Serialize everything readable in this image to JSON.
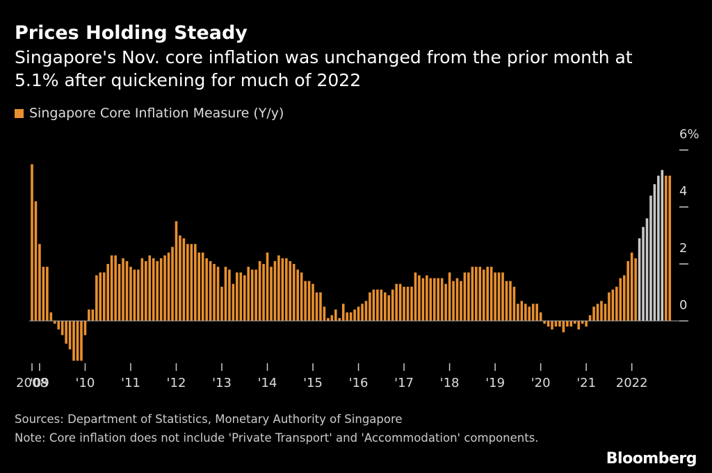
{
  "chart_data": {
    "type": "bar",
    "title": "Prices Holding Steady",
    "subtitle": "Singapore's Nov. core inflation was unchanged from the prior month at 5.1% after quickening for much of 2022",
    "source": "Sources: Department of Statistics, Monetary Authority of Singapore",
    "note": "Note: Core inflation does not include 'Private Transport' and 'Accommodation' components.",
    "brand": "Bloomberg",
    "ylim": [
      -1.6,
      6
    ],
    "yticks": [
      0,
      2,
      4,
      {
        "value": 6,
        "label": "6%"
      }
    ],
    "categories": [
      "2008",
      null,
      "'09",
      null,
      null,
      null,
      null,
      null,
      null,
      null,
      null,
      null,
      null,
      null,
      "'10",
      null,
      null,
      null,
      null,
      null,
      null,
      null,
      null,
      null,
      null,
      null,
      "'11",
      null,
      null,
      null,
      null,
      null,
      null,
      null,
      null,
      null,
      null,
      null,
      "'12",
      null,
      null,
      null,
      null,
      null,
      null,
      null,
      null,
      null,
      null,
      null,
      "'13",
      null,
      null,
      null,
      null,
      null,
      null,
      null,
      null,
      null,
      null,
      null,
      "'14",
      null,
      null,
      null,
      null,
      null,
      null,
      null,
      null,
      null,
      null,
      null,
      "'15",
      null,
      null,
      null,
      null,
      null,
      null,
      null,
      null,
      null,
      null,
      null,
      "'16",
      null,
      null,
      null,
      null,
      null,
      null,
      null,
      null,
      null,
      null,
      null,
      "'17",
      null,
      null,
      null,
      null,
      null,
      null,
      null,
      null,
      null,
      null,
      null,
      "'18",
      null,
      null,
      null,
      null,
      null,
      null,
      null,
      null,
      null,
      null,
      null,
      "'19",
      null,
      null,
      null,
      null,
      null,
      null,
      null,
      null,
      null,
      null,
      null,
      "'20",
      null,
      null,
      null,
      null,
      null,
      null,
      null,
      null,
      null,
      null,
      null,
      "'21",
      null,
      null,
      null,
      null,
      null,
      null,
      null,
      null,
      null,
      null,
      null,
      "2022",
      null,
      null,
      null,
      null,
      null,
      null,
      null,
      null,
      null,
      null
    ],
    "series": [
      {
        "name": "Singapore Core Inflation Measure (Y/y)",
        "color": "#e8902f",
        "values": [
          5.5,
          4.2,
          2.7,
          1.9,
          1.9,
          0.3,
          -0.1,
          -0.3,
          -0.5,
          -0.8,
          -1.0,
          -1.4,
          -1.4,
          -1.4,
          -0.5,
          0.4,
          0.4,
          1.6,
          1.7,
          1.7,
          2.0,
          2.3,
          2.3,
          2.0,
          2.2,
          2.1,
          1.9,
          1.8,
          1.8,
          2.2,
          2.1,
          2.3,
          2.2,
          2.1,
          2.2,
          2.3,
          2.4,
          2.6,
          3.5,
          3.0,
          2.9,
          2.7,
          2.7,
          2.7,
          2.4,
          2.4,
          2.2,
          2.1,
          2.0,
          1.9,
          1.2,
          1.9,
          1.8,
          1.3,
          1.7,
          1.7,
          1.6,
          1.9,
          1.8,
          1.8,
          2.1,
          2.0,
          2.4,
          1.9,
          2.1,
          2.3,
          2.2,
          2.2,
          2.1,
          2.0,
          1.8,
          1.7,
          1.4,
          1.4,
          1.3,
          1.0,
          1.0,
          0.5,
          0.1,
          0.2,
          0.4,
          0.1,
          0.6,
          0.3,
          0.3,
          0.4,
          0.5,
          0.6,
          0.7,
          1.0,
          1.1,
          1.1,
          1.1,
          1.0,
          0.9,
          1.1,
          1.3,
          1.3,
          1.2,
          1.2,
          1.2,
          1.7,
          1.6,
          1.5,
          1.6,
          1.5,
          1.5,
          1.5,
          1.5,
          1.3,
          1.7,
          1.4,
          1.5,
          1.4,
          1.7,
          1.7,
          1.9,
          1.9,
          1.9,
          1.8,
          1.9,
          1.9,
          1.7,
          1.7,
          1.7,
          1.4,
          1.4,
          1.2,
          0.6,
          0.7,
          0.6,
          0.5,
          0.6,
          0.6,
          0.3,
          -0.1,
          -0.2,
          -0.3,
          -0.2,
          -0.2,
          -0.4,
          -0.2,
          -0.2,
          -0.1,
          -0.3,
          -0.1,
          -0.2,
          0.2,
          0.5,
          0.6,
          0.7,
          0.6,
          1.0,
          1.1,
          1.2,
          1.5,
          1.6,
          2.1,
          2.4,
          2.2,
          2.9,
          3.3,
          3.6,
          4.4,
          4.8,
          5.1,
          5.3,
          5.1,
          5.1
        ],
        "bar_colors": [
          "#e8902f",
          "#e8902f",
          "#e8902f",
          "#e8902f",
          "#e8902f",
          "#e8902f",
          "#e8902f",
          "#e8902f",
          "#e8902f",
          "#e8902f",
          "#e8902f",
          "#e8902f",
          "#e8902f",
          "#e8902f",
          "#e8902f",
          "#e8902f",
          "#e8902f",
          "#e8902f",
          "#e8902f",
          "#e8902f",
          "#e8902f",
          "#e8902f",
          "#e8902f",
          "#e8902f",
          "#e8902f",
          "#e8902f",
          "#e8902f",
          "#e8902f",
          "#e8902f",
          "#e8902f",
          "#e8902f",
          "#e8902f",
          "#e8902f",
          "#e8902f",
          "#e8902f",
          "#e8902f",
          "#e8902f",
          "#e8902f",
          "#e8902f",
          "#e8902f",
          "#e8902f",
          "#e8902f",
          "#e8902f",
          "#e8902f",
          "#e8902f",
          "#e8902f",
          "#e8902f",
          "#e8902f",
          "#e8902f",
          "#e8902f",
          "#e8902f",
          "#e8902f",
          "#e8902f",
          "#e8902f",
          "#e8902f",
          "#e8902f",
          "#e8902f",
          "#e8902f",
          "#e8902f",
          "#e8902f",
          "#e8902f",
          "#e8902f",
          "#e8902f",
          "#e8902f",
          "#e8902f",
          "#e8902f",
          "#e8902f",
          "#e8902f",
          "#e8902f",
          "#e8902f",
          "#e8902f",
          "#e8902f",
          "#e8902f",
          "#e8902f",
          "#e8902f",
          "#e8902f",
          "#e8902f",
          "#e8902f",
          "#e8902f",
          "#e8902f",
          "#e8902f",
          "#e8902f",
          "#e8902f",
          "#e8902f",
          "#e8902f",
          "#e8902f",
          "#e8902f",
          "#e8902f",
          "#e8902f",
          "#e8902f",
          "#e8902f",
          "#e8902f",
          "#e8902f",
          "#e8902f",
          "#e8902f",
          "#e8902f",
          "#e8902f",
          "#e8902f",
          "#e8902f",
          "#e8902f",
          "#e8902f",
          "#e8902f",
          "#e8902f",
          "#e8902f",
          "#e8902f",
          "#e8902f",
          "#e8902f",
          "#e8902f",
          "#e8902f",
          "#e8902f",
          "#e8902f",
          "#e8902f",
          "#e8902f",
          "#e8902f",
          "#e8902f",
          "#e8902f",
          "#e8902f",
          "#e8902f",
          "#e8902f",
          "#e8902f",
          "#e8902f",
          "#e8902f",
          "#e8902f",
          "#e8902f",
          "#e8902f",
          "#e8902f",
          "#e8902f",
          "#e8902f",
          "#e8902f",
          "#e8902f",
          "#e8902f",
          "#e8902f",
          "#e8902f",
          "#e8902f",
          "#e8902f",
          "#e8902f",
          "#e8902f",
          "#e8902f",
          "#e8902f",
          "#e8902f",
          "#e8902f",
          "#e8902f",
          "#e8902f",
          "#e8902f",
          "#e8902f",
          "#e8902f",
          "#e8902f",
          "#e8902f",
          "#e8902f",
          "#e8902f",
          "#e8902f",
          "#e8902f",
          "#e8902f",
          "#e8902f",
          "#e8902f",
          "#e8902f",
          "#e8902f",
          "#e8902f",
          "#e8902f",
          "#e8902f",
          "#c8c8c8",
          "#c8c8c8",
          "#c8c8c8",
          "#c8c8c8",
          "#c8c8c8",
          "#c8c8c8",
          "#c8c8c8",
          "#e8902f",
          "#e8902f"
        ]
      }
    ]
  }
}
